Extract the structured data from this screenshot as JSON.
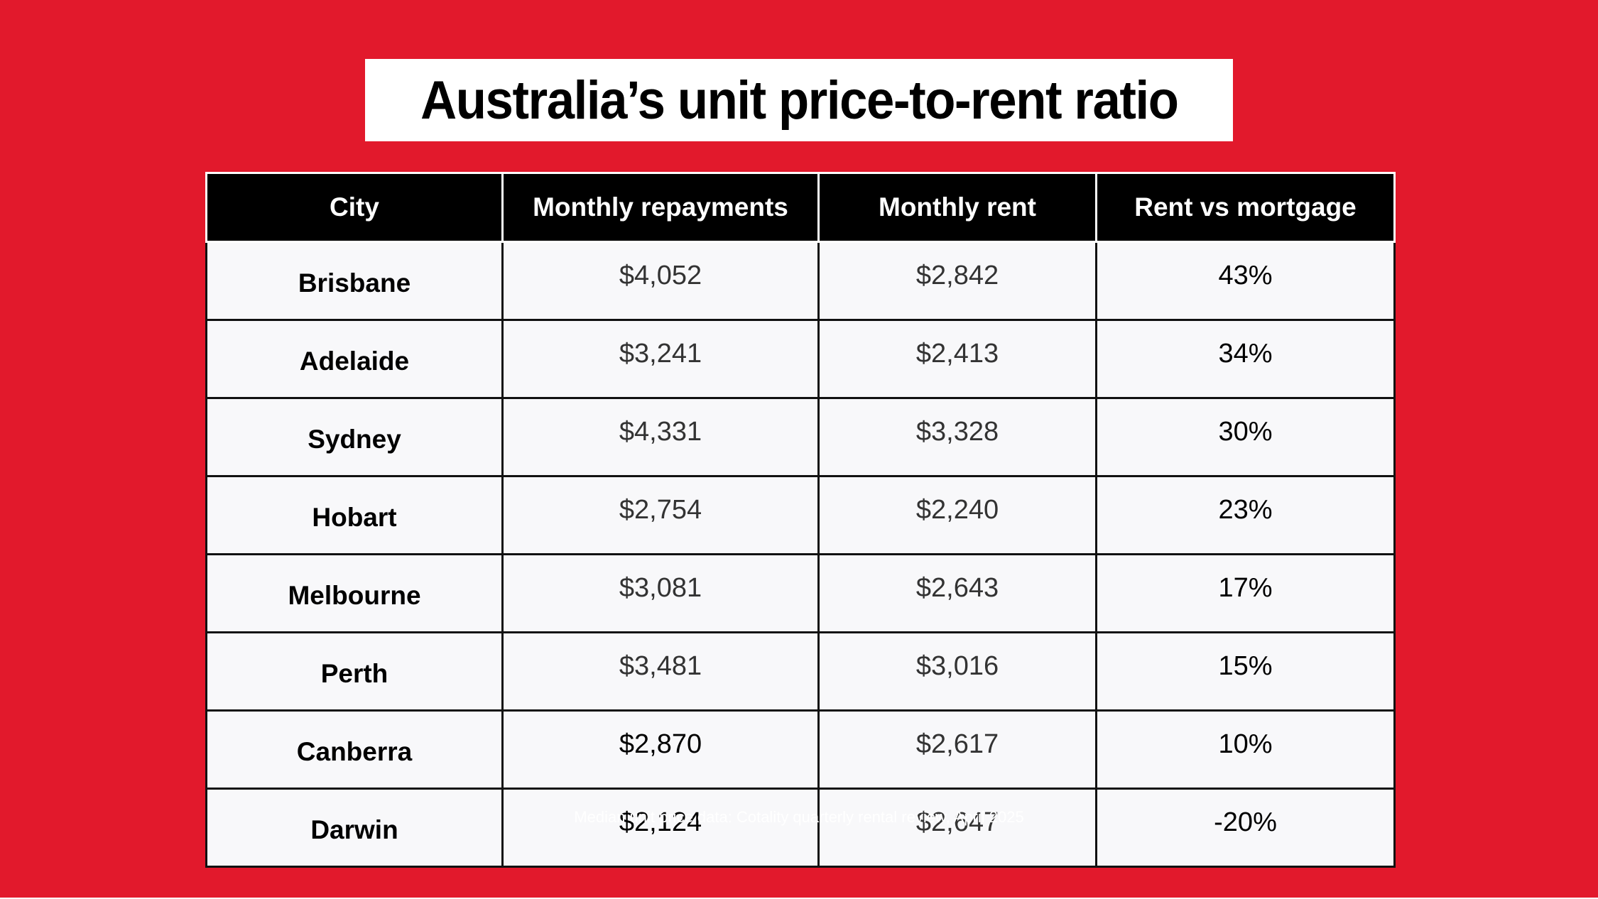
{
  "title": "Australia’s unit price-to-rent ratio",
  "table": {
    "headers": [
      "City",
      "Monthly repayments",
      "Monthly rent",
      "Rent vs mortgage"
    ],
    "rows": [
      [
        "Brisbane",
        "$4,052",
        "$2,842",
        "43%"
      ],
      [
        "Adelaide",
        "$3,241",
        "$2,413",
        "34%"
      ],
      [
        "Sydney",
        "$4,331",
        "$3,328",
        "30%"
      ],
      [
        "Hobart",
        "$2,754",
        "$2,240",
        "23%"
      ],
      [
        "Melbourne",
        "$3,081",
        "$2,643",
        "17%"
      ],
      [
        "Perth",
        "$3,481",
        "$3,016",
        "15%"
      ],
      [
        "Canberra",
        "$2,870",
        "$2,617",
        "10%"
      ],
      [
        "Darwin",
        "$2,124",
        "$2,647",
        "-20%"
      ]
    ]
  },
  "footnote": "Median unit price data: Cotality quarterly rental review, April 2025",
  "colors": {
    "background": "#e2192c",
    "header_background": "#000000",
    "cell_background": "#f8f8fa"
  }
}
